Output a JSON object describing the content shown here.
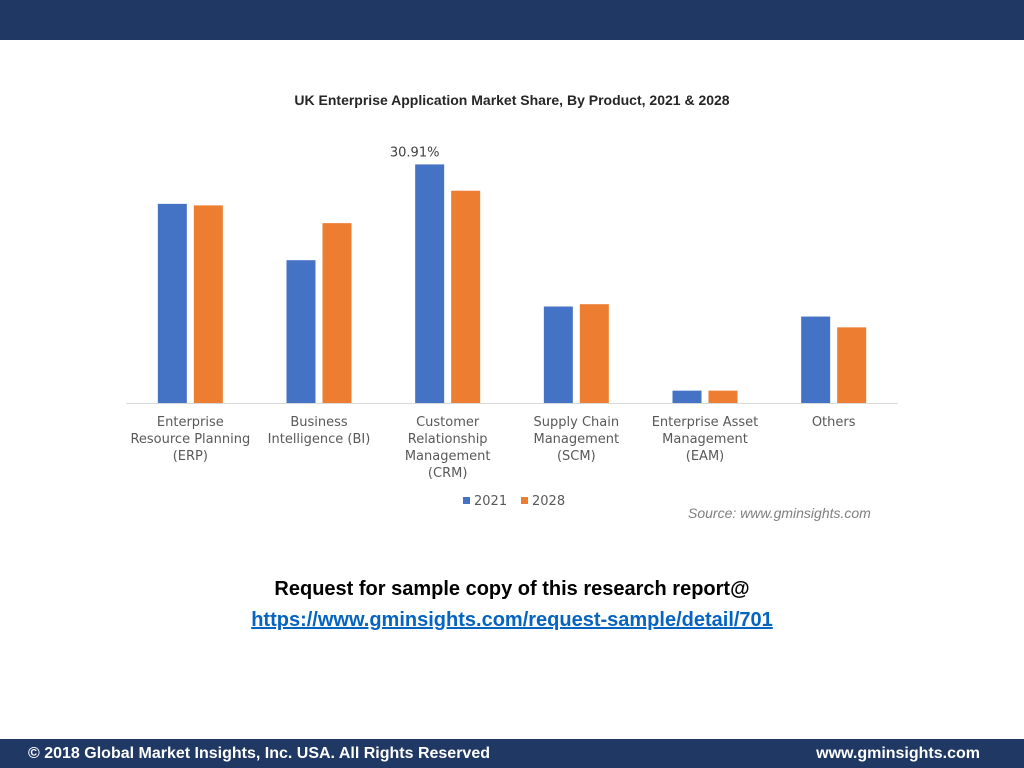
{
  "header": {},
  "chart_data": {
    "type": "bar",
    "title": "UK Enterprise Application  Market Share, By Product, 2021 & 2028",
    "categories": [
      [
        "Enterprise",
        "Resource Planning",
        "(ERP)"
      ],
      [
        "Business",
        "Intelligence (BI)"
      ],
      [
        "Customer",
        "Relationship",
        "Management",
        "(CRM)"
      ],
      [
        "Supply Chain",
        "Management",
        "(SCM)"
      ],
      [
        "Enterprise Asset",
        "Management",
        "(EAM)"
      ],
      [
        "Others"
      ]
    ],
    "series": [
      {
        "name": "2021",
        "color": "#4472c4",
        "values": [
          25.8,
          18.5,
          30.91,
          12.5,
          1.6,
          11.2
        ]
      },
      {
        "name": "2028",
        "color": "#ed7d31",
        "values": [
          25.6,
          23.3,
          27.5,
          12.8,
          1.6,
          9.8
        ]
      }
    ],
    "data_labels": [
      {
        "series": 0,
        "index": 2,
        "text": "30.91%"
      }
    ],
    "ylim": [
      0,
      32
    ],
    "xlabel": "",
    "ylabel": "",
    "grid": false,
    "legend": "bottom",
    "source": "Source: www.gminsights.com"
  },
  "cta": {
    "text": "Request for sample copy of this research report@",
    "link": "https://www.gminsights.com/request-sample/detail/701"
  },
  "footer": {
    "copyright": "© 2018 Global Market Insights, Inc. USA. All Rights Reserved",
    "website": "www.gminsights.com"
  }
}
